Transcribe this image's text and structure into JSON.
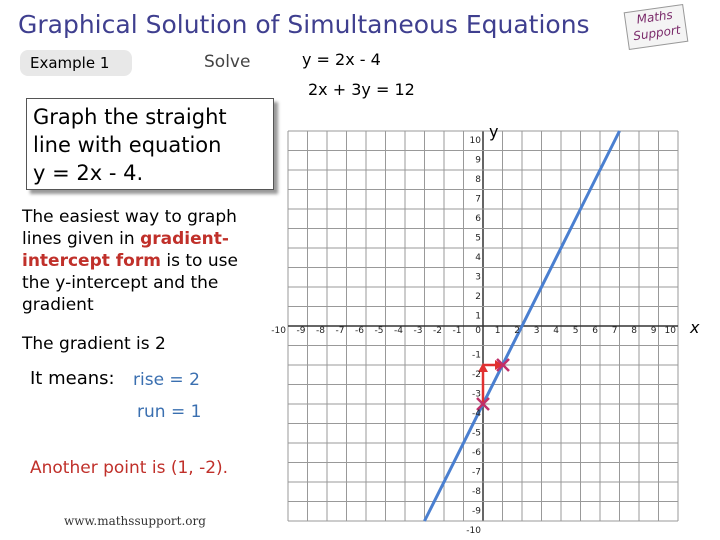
{
  "header": {
    "title": "Graphical Solution of Simultaneous Equations",
    "example": "Example 1",
    "solve": "Solve",
    "equations": [
      "y = 2x - 4",
      "2x + 3y = 12"
    ],
    "logo": [
      "Maths",
      "Support"
    ]
  },
  "box": {
    "lines": [
      "Graph the straight",
      "line with equation",
      "y = 2x - 4."
    ]
  },
  "intro": {
    "lines": [
      [
        "The easiest way to graph"
      ],
      [
        "lines given in ",
        "gradient-"
      ],
      [
        "intercept form",
        " is to use"
      ],
      [
        "the y-intercept and the"
      ],
      [
        "gradient"
      ]
    ]
  },
  "gradient": "The gradient is 2",
  "means": {
    "label": "It means:",
    "rise": "rise = 2",
    "run": "run = 1"
  },
  "another": "Another point is (1, -2).",
  "footer": "www.mathssupport.org",
  "graph": {
    "x_label": "x",
    "y_label": "y",
    "xlim": [
      -10,
      10
    ],
    "ylim": [
      -10,
      10
    ],
    "xticks": [
      -10,
      -9,
      -8,
      -7,
      -6,
      -5,
      -4,
      -3,
      -2,
      -1,
      0,
      1,
      2,
      3,
      4,
      5,
      6,
      7,
      8,
      9,
      10
    ],
    "yticks": [
      -10,
      -9,
      -8,
      -7,
      -6,
      -5,
      -4,
      -3,
      -2,
      -1,
      1,
      2,
      3,
      4,
      5,
      6,
      7,
      8,
      9,
      10
    ]
  }
}
